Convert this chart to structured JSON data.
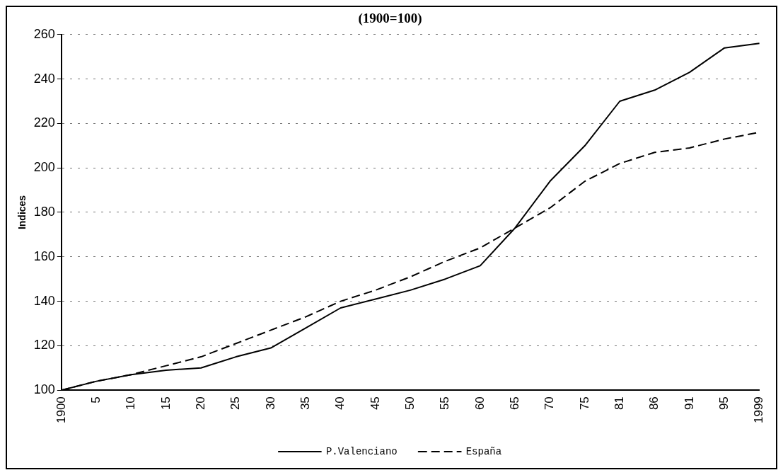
{
  "chart_data": {
    "type": "line",
    "title": "(1900=100)",
    "ylabel": "Indices",
    "categories": [
      "1900",
      "5",
      "10",
      "15",
      "20",
      "25",
      "30",
      "35",
      "40",
      "45",
      "50",
      "55",
      "60",
      "65",
      "70",
      "75",
      "81",
      "86",
      "91",
      "95",
      "1999"
    ],
    "series": [
      {
        "name": "P.Valenciano",
        "color": "#000000",
        "line_style": "solid",
        "values": [
          100,
          104,
          107,
          109,
          110,
          115,
          119,
          128,
          137,
          141,
          145,
          150,
          156,
          173,
          194,
          210,
          230,
          235,
          243,
          254,
          256
        ]
      },
      {
        "name": "España",
        "color": "#000000",
        "line_style": "dashed",
        "values": [
          100,
          104,
          107,
          111,
          115,
          121,
          127,
          133,
          140,
          145,
          151,
          158,
          164,
          173,
          182,
          194,
          202,
          207,
          209,
          213,
          216
        ]
      }
    ],
    "ylim": [
      100,
      260
    ],
    "yticks": [
      100,
      120,
      140,
      160,
      180,
      200,
      220,
      240,
      260
    ],
    "grid": "y",
    "legend": "bottom",
    "marker": "none"
  }
}
